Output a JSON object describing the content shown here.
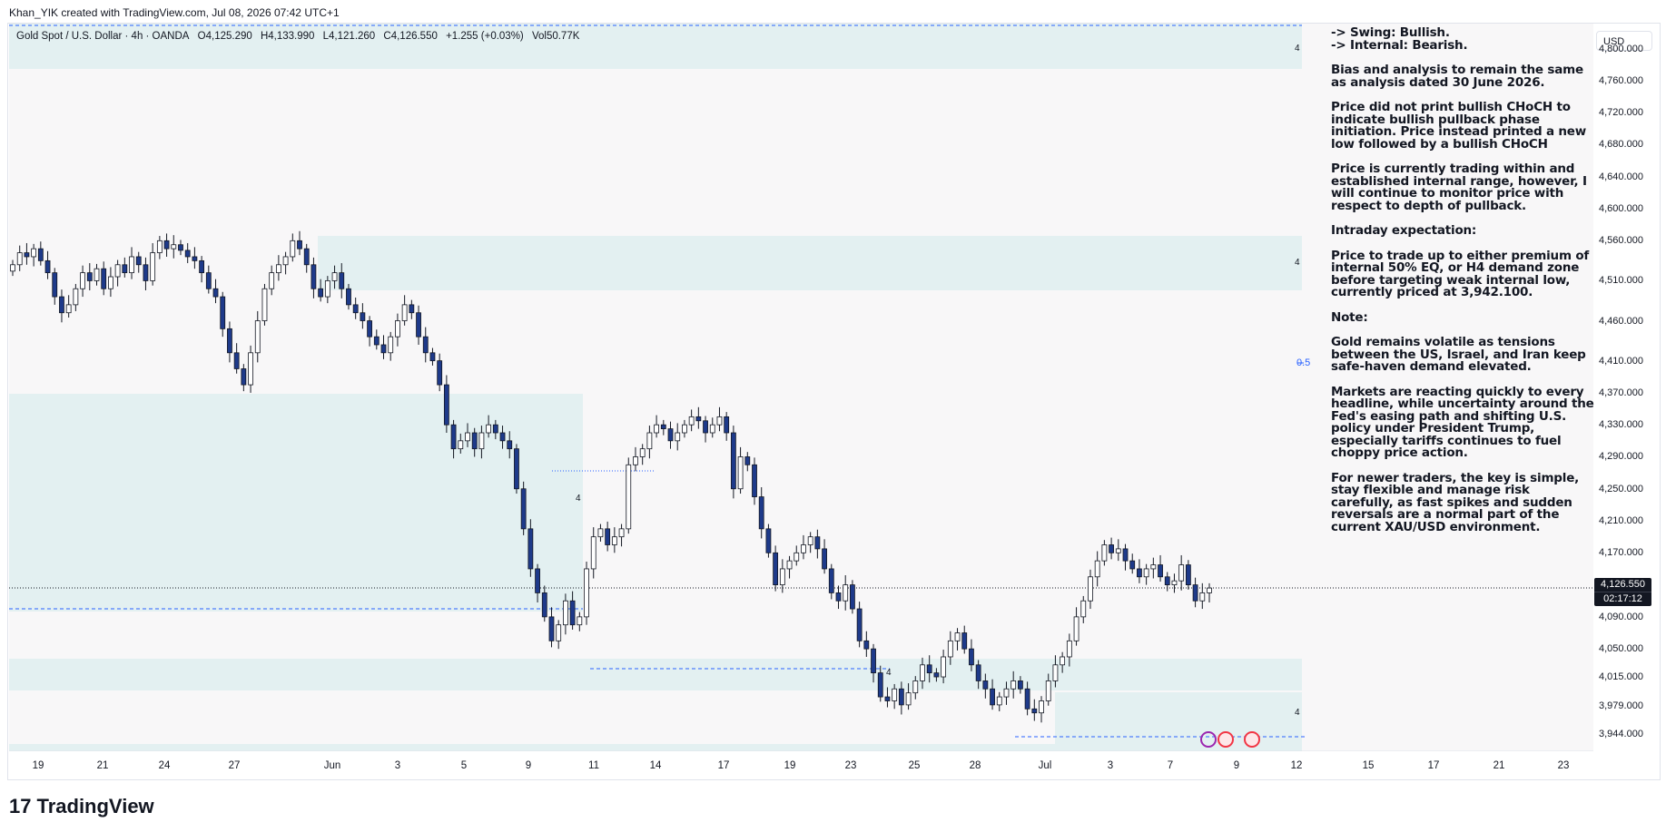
{
  "header": {
    "attribution": "Khan_YIK created with TradingView.com, Jul 08, 2026 07:42 UTC+1"
  },
  "legend": {
    "symbol": "Gold Spot / U.S. Dollar · 4h · OANDA",
    "open": "O4,125.290",
    "high": "H4,133.990",
    "low": "L4,121.260",
    "close": "C4,126.550",
    "change": "+1.255 (+0.03%)",
    "volume": "Vol50.77K"
  },
  "currency_button": "USD",
  "price_tag": {
    "price": "4,126.550",
    "countdown": "02:17:12"
  },
  "fib_label": "0.5",
  "zone_labels": [
    "4",
    "4",
    "4",
    "4",
    "4"
  ],
  "brand": {
    "logo": "17",
    "name": "TradingView"
  },
  "colors": {
    "up": "#ffffff",
    "down": "#1e3a8a",
    "wick": "#131722",
    "zone": "#e3f0f1",
    "accent": "#2962ff"
  },
  "notes": {
    "swing": "-> Swing:  Bullish.",
    "internal": "-> Internal:  Bearish.",
    "paragraphs": [
      "Bias and analysis to remain the same as analysis dated 30 June 2026.",
      "Price did not print bullish CHoCH to indicate bullish pullback phase initiation. Price instead printed a new low followed by a bullish CHoCH",
      "Price is currently trading within and established internal range, however, I will continue to monitor price with respect to depth of pullback.",
      "Intraday expectation:",
      "Price to trade up to either premium of internal 50% EQ, or H4 demand zone before targeting weak internal low, currently priced at 3,942.100.",
      "Note:",
      "Gold remains volatile as tensions between the US, Israel, and Iran keep safe-haven demand elevated.",
      "Markets are reacting quickly to every headline, while uncertainty around the Fed's easing path and shifting U.S. policy under President Trump, especially tariffs continues to fuel choppy price action.",
      "For newer traders, the key is simple, stay flexible and manage risk carefully, as fast spikes and sudden reversals are a normal part of the current XAU/USD environment."
    ]
  },
  "chart_data": {
    "type": "candlestick",
    "y_ticks": [
      "4,800.000",
      "4,760.000",
      "4,720.000",
      "4,680.000",
      "4,640.000",
      "4,600.000",
      "4,560.000",
      "4,510.000",
      "4,460.000",
      "4,410.000",
      "4,370.000",
      "4,330.000",
      "4,290.000",
      "4,250.000",
      "4,210.000",
      "4,170.000",
      "4,090.000",
      "4,050.000",
      "4,015.000",
      "3,979.000",
      "3,944.000"
    ],
    "x_ticks": [
      "19",
      "21",
      "24",
      "27",
      "Jun",
      "3",
      "5",
      "9",
      "11",
      "14",
      "17",
      "19",
      "23",
      "25",
      "28",
      "Jul",
      "3",
      "7",
      "9",
      "12",
      "15",
      "17",
      "21",
      "23"
    ],
    "closes": [
      4530,
      4545,
      4540,
      4550,
      4535,
      4520,
      4490,
      4470,
      4480,
      4500,
      4520,
      4510,
      4525,
      4500,
      4515,
      4530,
      4520,
      4540,
      4530,
      4510,
      4545,
      4560,
      4550,
      4555,
      4548,
      4540,
      4535,
      4520,
      4500,
      4490,
      4450,
      4420,
      4400,
      4380,
      4420,
      4460,
      4500,
      4520,
      4530,
      4540,
      4560,
      4550,
      4530,
      4500,
      4490,
      4510,
      4520,
      4500,
      4480,
      4470,
      4460,
      4440,
      4430,
      4420,
      4440,
      4460,
      4480,
      4470,
      4440,
      4420,
      4410,
      4380,
      4330,
      4300,
      4310,
      4320,
      4300,
      4320,
      4330,
      4320,
      4310,
      4300,
      4250,
      4200,
      4150,
      4120,
      4090,
      4060,
      4080,
      4110,
      4080,
      4090,
      4150,
      4190,
      4200,
      4180,
      4190,
      4200,
      4280,
      4290,
      4300,
      4320,
      4330,
      4325,
      4310,
      4320,
      4330,
      4340,
      4335,
      4320,
      4330,
      4340,
      4320,
      4250,
      4290,
      4280,
      4240,
      4200,
      4170,
      4130,
      4150,
      4160,
      4170,
      4180,
      4190,
      4175,
      4150,
      4120,
      4110,
      4130,
      4100,
      4060,
      4050,
      4020,
      3990,
      3985,
      4000,
      3980,
      3995,
      4010,
      4030,
      4020,
      4015,
      4040,
      4060,
      4070,
      4050,
      4030,
      4010,
      4000,
      3980,
      3990,
      4000,
      4010,
      4000,
      3975,
      3970,
      3985,
      4010,
      4030,
      4040,
      4060,
      4090,
      4110,
      4140,
      4160,
      4180,
      4170,
      4175,
      4160,
      4150,
      4140,
      4150,
      4155,
      4140,
      4130,
      4135,
      4155,
      4130,
      4110,
      4120,
      4126
    ]
  }
}
